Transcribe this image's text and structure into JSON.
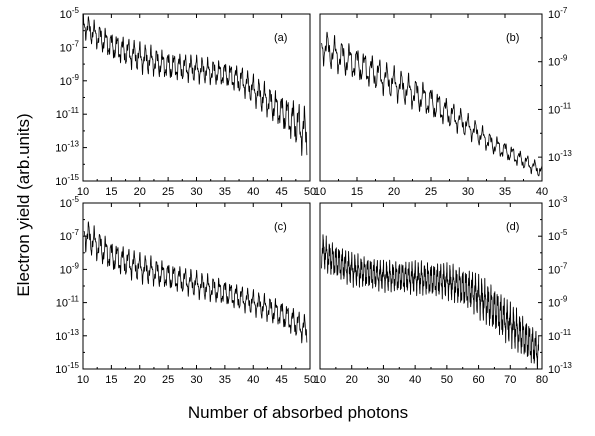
{
  "figure": {
    "xlabel": "Number of absorbed photons",
    "ylabel": "Electron yield (arb.units)"
  },
  "chart_data": [
    {
      "type": "line",
      "label": "(a)",
      "y_scale": "log",
      "y_axis_side": "left",
      "xlim": [
        10,
        50
      ],
      "xticks": [
        10,
        15,
        20,
        25,
        30,
        35,
        40,
        45,
        50
      ],
      "ylim": [
        1e-15,
        1e-05
      ],
      "yticks": [
        1e-15,
        1e-13,
        1e-11,
        1e-09,
        1e-07,
        1e-05
      ],
      "ytick_labels": [
        [
          "10",
          "-15"
        ],
        [
          "10",
          "-13"
        ],
        [
          "10",
          "-11"
        ],
        [
          "10",
          "-9"
        ],
        [
          "10",
          "-7"
        ],
        [
          "10",
          "-5"
        ]
      ],
      "envelope": [
        [
          10,
          -5.6
        ],
        [
          12,
          -6.2
        ],
        [
          15,
          -6.9
        ],
        [
          20,
          -7.6
        ],
        [
          25,
          -8.1
        ],
        [
          30,
          -8.3
        ],
        [
          35,
          -8.6
        ],
        [
          38,
          -9.0
        ],
        [
          41,
          -9.8
        ],
        [
          44,
          -10.6
        ],
        [
          47,
          -11.4
        ],
        [
          49.5,
          -12.2
        ]
      ],
      "oscillation_period": 1,
      "oscillation_depth": [
        [
          10,
          1.0
        ],
        [
          20,
          1.2
        ],
        [
          35,
          1.0
        ],
        [
          45,
          1.4
        ],
        [
          50,
          2.2
        ]
      ]
    },
    {
      "type": "line",
      "label": "(b)",
      "y_scale": "log",
      "y_axis_side": "right",
      "xlim": [
        10,
        40
      ],
      "xticks": [
        10,
        15,
        20,
        25,
        30,
        35,
        40
      ],
      "ylim": [
        1e-14,
        1e-07
      ],
      "yticks": [
        1e-13,
        1e-11,
        1e-09,
        1e-07
      ],
      "ytick_labels": [
        [
          "10",
          "-13"
        ],
        [
          "10",
          "-11"
        ],
        [
          "10",
          "-9"
        ],
        [
          "10",
          "-7"
        ]
      ],
      "envelope": [
        [
          10.2,
          -8.3
        ],
        [
          12,
          -8.7
        ],
        [
          15,
          -9.1
        ],
        [
          20,
          -9.9
        ],
        [
          25,
          -10.7
        ],
        [
          30,
          -11.7
        ],
        [
          33,
          -12.4
        ],
        [
          36,
          -12.9
        ],
        [
          40,
          -13.6
        ]
      ],
      "oscillation_period": 1,
      "oscillation_depth": [
        [
          10,
          1.0
        ],
        [
          25,
          0.9
        ],
        [
          32,
          0.6
        ],
        [
          40,
          0.4
        ]
      ]
    },
    {
      "type": "line",
      "label": "(c)",
      "y_scale": "log",
      "y_axis_side": "left",
      "xlim": [
        10,
        50
      ],
      "xticks": [
        10,
        15,
        20,
        25,
        30,
        35,
        40,
        45,
        50
      ],
      "ylim": [
        1e-15,
        1e-05
      ],
      "yticks": [
        1e-15,
        1e-13,
        1e-11,
        1e-09,
        1e-07,
        1e-05
      ],
      "ytick_labels": [
        [
          "10",
          "-15"
        ],
        [
          "10",
          "-13"
        ],
        [
          "10",
          "-11"
        ],
        [
          "10",
          "-9"
        ],
        [
          "10",
          "-7"
        ],
        [
          "10",
          "-5"
        ]
      ],
      "envelope": [
        [
          10.2,
          -6.8
        ],
        [
          12,
          -7.4
        ],
        [
          15,
          -8.2
        ],
        [
          20,
          -8.9
        ],
        [
          25,
          -9.4
        ],
        [
          30,
          -9.9
        ],
        [
          35,
          -10.4
        ],
        [
          40,
          -11.0
        ],
        [
          45,
          -11.7
        ],
        [
          49.5,
          -12.7
        ]
      ],
      "oscillation_period": 1,
      "oscillation_depth": [
        [
          10,
          1.3
        ],
        [
          25,
          1.1
        ],
        [
          40,
          1.0
        ],
        [
          50,
          1.2
        ]
      ]
    },
    {
      "type": "line",
      "label": "(d)",
      "y_scale": "log",
      "y_axis_side": "right",
      "xlim": [
        10,
        80
      ],
      "xticks": [
        10,
        20,
        30,
        40,
        50,
        60,
        70,
        80
      ],
      "ylim": [
        1e-13,
        0.001
      ],
      "yticks": [
        1e-13,
        1e-11,
        1e-09,
        1e-07,
        1e-05,
        0.001
      ],
      "ytick_labels": [
        [
          "10",
          "-13"
        ],
        [
          "10",
          "-11"
        ],
        [
          "10",
          "-9"
        ],
        [
          "10",
          "-7"
        ],
        [
          "10",
          "-5"
        ],
        [
          "10",
          "-3"
        ]
      ],
      "envelope": [
        [
          10.5,
          -5.8
        ],
        [
          13,
          -6.3
        ],
        [
          20,
          -7.0
        ],
        [
          30,
          -7.4
        ],
        [
          40,
          -7.5
        ],
        [
          50,
          -7.7
        ],
        [
          58,
          -8.3
        ],
        [
          65,
          -9.4
        ],
        [
          70,
          -10.3
        ],
        [
          75,
          -11.2
        ],
        [
          79,
          -12.0
        ]
      ],
      "oscillation_period": 1,
      "oscillation_depth": [
        [
          10,
          1.4
        ],
        [
          30,
          1.2
        ],
        [
          50,
          1.4
        ],
        [
          65,
          1.8
        ],
        [
          80,
          1.5
        ]
      ]
    }
  ]
}
